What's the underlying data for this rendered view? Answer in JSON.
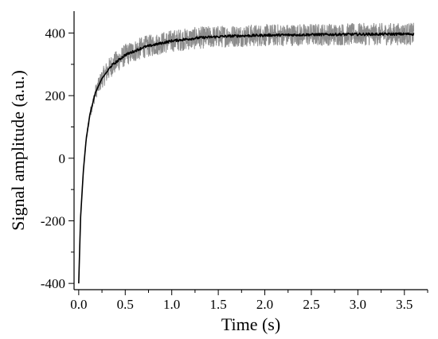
{
  "chart_data": {
    "type": "line",
    "title": "",
    "xlabel": "Time (s)",
    "ylabel": "Signal amplitude (a.u.)",
    "xlim": [
      -0.05,
      3.75
    ],
    "ylim": [
      -420,
      470
    ],
    "x_ticks": [
      "0.0",
      "0.5",
      "1.0",
      "1.5",
      "2.0",
      "2.5",
      "3.0",
      "3.5"
    ],
    "x_tick_values": [
      0.0,
      0.5,
      1.0,
      1.5,
      2.0,
      2.5,
      3.0,
      3.5
    ],
    "y_ticks": [
      "-400",
      "-200",
      "0",
      "200",
      "400"
    ],
    "y_tick_values": [
      -400,
      -200,
      0,
      200,
      400
    ],
    "grid": false,
    "legend": "none",
    "series": [
      {
        "role": "raw-noisy",
        "color": "#8c8c8c",
        "x": [
          0.0,
          0.02,
          0.05,
          0.08,
          0.12,
          0.18,
          0.25,
          0.35,
          0.5,
          0.7,
          1.0,
          1.3,
          1.6,
          2.0,
          2.5,
          3.0,
          3.6
        ],
        "values": [
          -400,
          -190,
          -40,
          60,
          140,
          210,
          255,
          295,
          330,
          355,
          375,
          385,
          390,
          393,
          395,
          396,
          397
        ],
        "noise_amplitude": 35
      },
      {
        "role": "smoothed",
        "color": "#000000",
        "x": [
          0.0,
          0.02,
          0.05,
          0.08,
          0.12,
          0.18,
          0.25,
          0.35,
          0.5,
          0.7,
          1.0,
          1.3,
          1.6,
          2.0,
          2.5,
          3.0,
          3.6
        ],
        "values": [
          -400,
          -190,
          -40,
          60,
          140,
          210,
          255,
          295,
          330,
          355,
          375,
          385,
          390,
          393,
          395,
          396,
          397
        ]
      }
    ]
  }
}
